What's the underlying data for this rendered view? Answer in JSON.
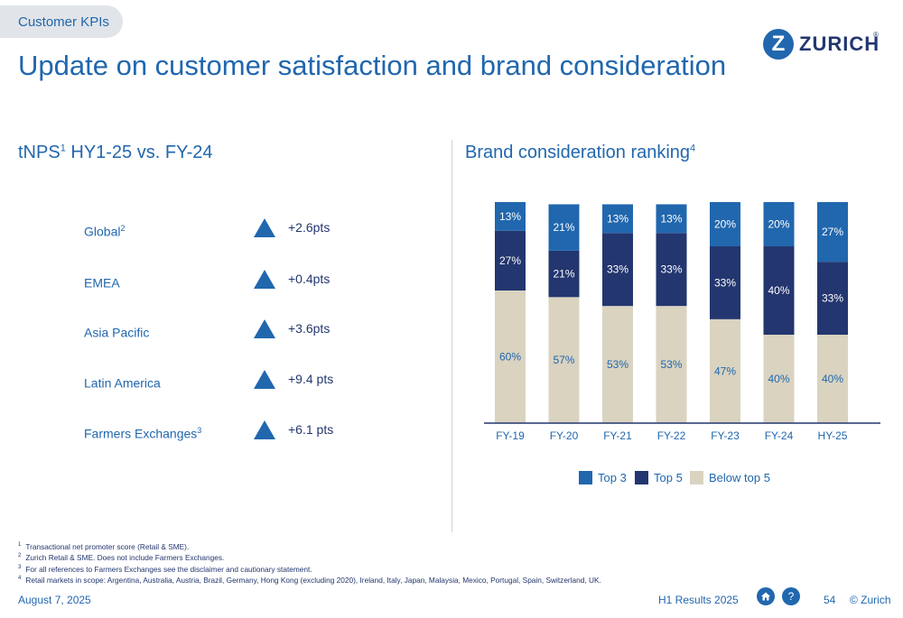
{
  "section_tab": "Customer KPIs",
  "title": "Update on customer satisfaction and brand consideration",
  "logo": {
    "mark": "Z",
    "word": "ZURICH",
    "reg": "®",
    "icon": "zurich-logo-icon"
  },
  "left_section": {
    "heading": "tNPS",
    "heading_sup": "1",
    "heading_rest": " HY1-25 vs. FY-24"
  },
  "right_section": {
    "heading": "Brand consideration ranking",
    "heading_sup": "4"
  },
  "kpis": [
    {
      "label": "Global",
      "sup": "2",
      "value": "+2.6pts",
      "icon": "up-triangle-icon"
    },
    {
      "label": "EMEA",
      "sup": "",
      "value": "+0.4pts",
      "icon": "up-triangle-icon"
    },
    {
      "label": "Asia Pacific",
      "sup": "",
      "value": "+3.6pts",
      "icon": "up-triangle-icon"
    },
    {
      "label": "Latin America",
      "sup": "",
      "value": "+9.4 pts",
      "icon": "up-triangle-icon"
    },
    {
      "label": "Farmers Exchanges",
      "sup": "3",
      "value": "+6.1 pts",
      "icon": "up-triangle-icon"
    }
  ],
  "chart_data": {
    "type": "bar",
    "stacked": true,
    "categories": [
      "FY-19",
      "FY-20",
      "FY-21",
      "FY-22",
      "FY-23",
      "FY-24",
      "HY-25"
    ],
    "series": [
      {
        "name": "Below top 5",
        "values": [
          60,
          57,
          53,
          53,
          47,
          40,
          40
        ],
        "color": "#d9d3c0"
      },
      {
        "name": "Top 5",
        "values": [
          27,
          21,
          33,
          33,
          33,
          40,
          33
        ],
        "color": "#23366f"
      },
      {
        "name": "Top 3",
        "values": [
          13,
          21,
          13,
          13,
          20,
          20,
          27
        ],
        "color": "#2167ae"
      }
    ],
    "labels": {
      "Below top 5": [
        "60%",
        "57%",
        "53%",
        "53%",
        "47%",
        "40%",
        "40%"
      ],
      "Top 5": [
        "27%",
        "21%",
        "33%",
        "33%",
        "33%",
        "40%",
        "33%"
      ],
      "Top 3": [
        "13%",
        "21%",
        "13%",
        "13%",
        "20%",
        "20%",
        "27%"
      ]
    },
    "ylim": [
      0,
      100
    ],
    "grid": false,
    "legend_position": "bottom"
  },
  "legend": [
    {
      "label": "Top 3",
      "color": "#2167ae"
    },
    {
      "label": "Top 5",
      "color": "#23366f"
    },
    {
      "label": "Below top 5",
      "color": "#d9d3c0"
    }
  ],
  "footnotes": [
    {
      "num": "1",
      "text": "Transactional net promoter score (Retail & SME)."
    },
    {
      "num": "2",
      "text": "Zurich Retail & SME. Does not include Farmers Exchanges."
    },
    {
      "num": "3",
      "text": "For all references to Farmers Exchanges see the disclaimer and cautionary statement."
    },
    {
      "num": "4",
      "text": "Retail markets in scope: Argentina, Australia, Austria, Brazil, Germany, Hong Kong (excluding 2020), Ireland, Italy, Japan, Malaysia, Mexico, Portugal, Spain, Switzerland, UK."
    }
  ],
  "footer": {
    "date": "August 7, 2025",
    "report": "H1 Results 2025",
    "home_icon": "home-icon",
    "help_icon": "question-icon",
    "help_glyph": "?",
    "page": "54",
    "copyright": "© Zurich"
  }
}
